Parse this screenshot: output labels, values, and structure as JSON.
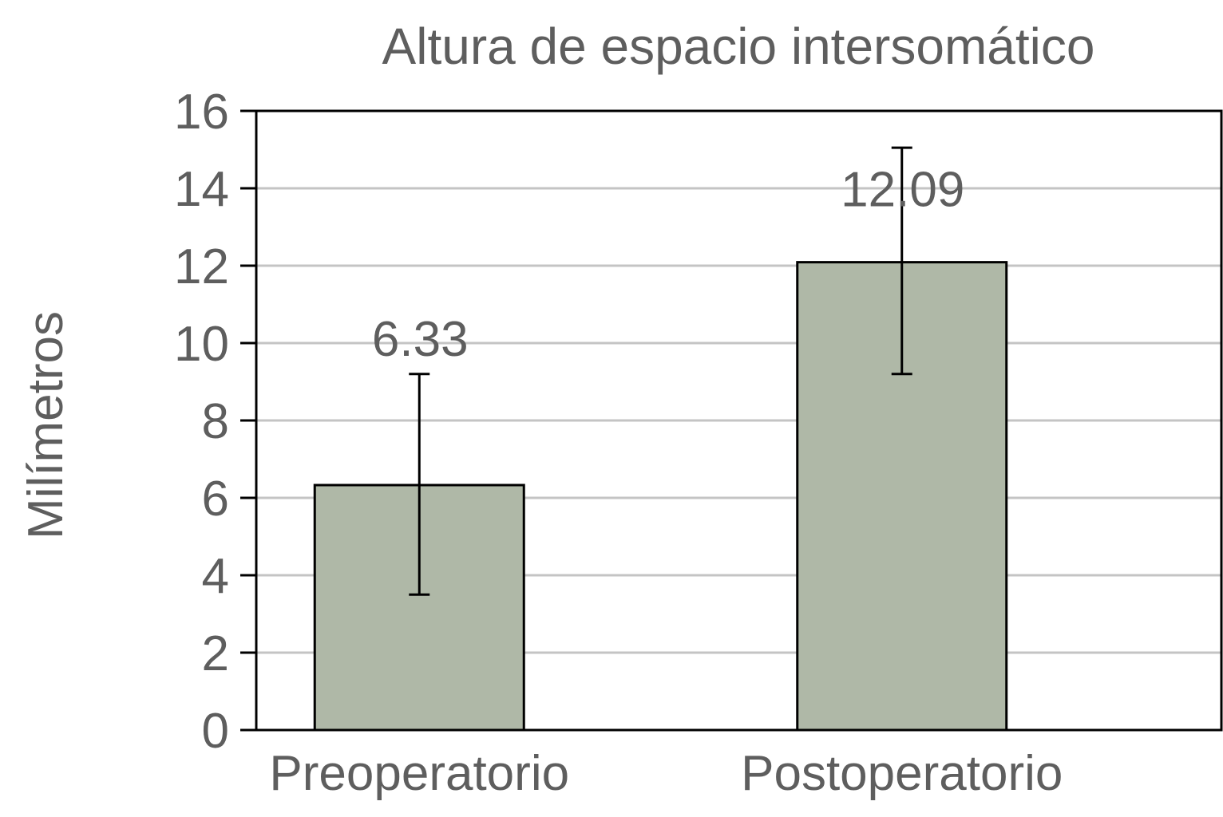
{
  "chart_data": {
    "type": "bar",
    "title": "Altura de espacio intersomático",
    "xlabel": "",
    "ylabel": "Milímetros",
    "categories": [
      "Preoperatorio",
      "Postoperatorio"
    ],
    "values": [
      6.33,
      12.09
    ],
    "value_labels": [
      "6.33",
      "12.09"
    ],
    "error_bars": [
      {
        "low": 3.5,
        "high": 9.2
      },
      {
        "low": 9.2,
        "high": 15.05
      }
    ],
    "ylim": [
      0,
      16
    ],
    "yticks": [
      0,
      2,
      4,
      6,
      8,
      10,
      12,
      14,
      16
    ],
    "grid": true,
    "legend": "none",
    "colors": {
      "bar_fill": "#afb8a7",
      "bar_stroke": "#000000",
      "grid": "#c4c4c4",
      "text": "#5e5e5e"
    }
  }
}
